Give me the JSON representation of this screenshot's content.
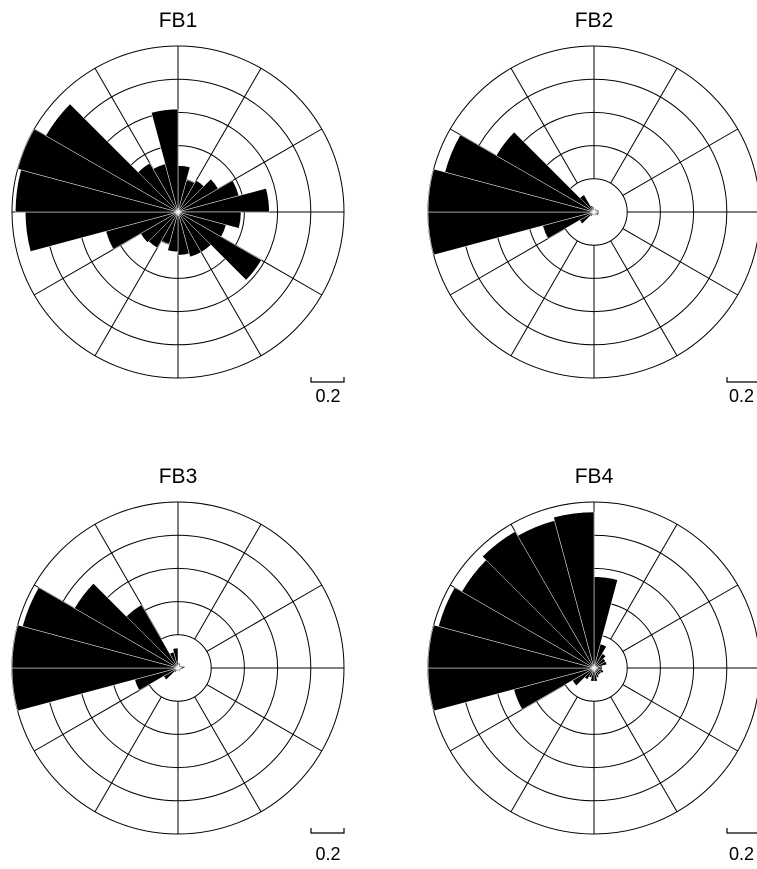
{
  "chart_data": [
    {
      "type": "rose",
      "title": "FB1",
      "rmax": 1.0,
      "ring_step": 0.2,
      "sector_width_deg": 15,
      "scale_label": "0.2",
      "sectors": [
        {
          "dir_deg": 7.5,
          "value": 0.28
        },
        {
          "dir_deg": 22.5,
          "value": 0.2
        },
        {
          "dir_deg": 37.5,
          "value": 0.22
        },
        {
          "dir_deg": 52.5,
          "value": 0.28
        },
        {
          "dir_deg": 67.5,
          "value": 0.38
        },
        {
          "dir_deg": 82.5,
          "value": 0.55
        },
        {
          "dir_deg": 97.5,
          "value": 0.38
        },
        {
          "dir_deg": 112.5,
          "value": 0.3
        },
        {
          "dir_deg": 127.5,
          "value": 0.58
        },
        {
          "dir_deg": 142.5,
          "value": 0.28
        },
        {
          "dir_deg": 157.5,
          "value": 0.28
        },
        {
          "dir_deg": 172.5,
          "value": 0.26
        },
        {
          "dir_deg": 187.5,
          "value": 0.24
        },
        {
          "dir_deg": 202.5,
          "value": 0.2
        },
        {
          "dir_deg": 217.5,
          "value": 0.25
        },
        {
          "dir_deg": 232.5,
          "value": 0.26
        },
        {
          "dir_deg": 247.5,
          "value": 0.45
        },
        {
          "dir_deg": 262.5,
          "value": 0.92
        },
        {
          "dir_deg": 277.5,
          "value": 0.98
        },
        {
          "dir_deg": 292.5,
          "value": 1.0
        },
        {
          "dir_deg": 307.5,
          "value": 0.92
        },
        {
          "dir_deg": 322.5,
          "value": 0.34
        },
        {
          "dir_deg": 337.5,
          "value": 0.3
        },
        {
          "dir_deg": 352.5,
          "value": 0.62
        }
      ]
    },
    {
      "type": "rose",
      "title": "FB2",
      "rmax": 1.0,
      "ring_step": 0.2,
      "sector_width_deg": 15,
      "scale_label": "0.2",
      "sectors": [
        {
          "dir_deg": 7.5,
          "value": 0.02
        },
        {
          "dir_deg": 22.5,
          "value": 0.02
        },
        {
          "dir_deg": 37.5,
          "value": 0.02
        },
        {
          "dir_deg": 52.5,
          "value": 0.02
        },
        {
          "dir_deg": 67.5,
          "value": 0.03
        },
        {
          "dir_deg": 82.5,
          "value": 0.03
        },
        {
          "dir_deg": 97.5,
          "value": 0.03
        },
        {
          "dir_deg": 112.5,
          "value": 0.03
        },
        {
          "dir_deg": 127.5,
          "value": 0.03
        },
        {
          "dir_deg": 142.5,
          "value": 0.02
        },
        {
          "dir_deg": 157.5,
          "value": 0.02
        },
        {
          "dir_deg": 172.5,
          "value": 0.02
        },
        {
          "dir_deg": 187.5,
          "value": 0.02
        },
        {
          "dir_deg": 202.5,
          "value": 0.02
        },
        {
          "dir_deg": 217.5,
          "value": 0.03
        },
        {
          "dir_deg": 232.5,
          "value": 0.1
        },
        {
          "dir_deg": 247.5,
          "value": 0.32
        },
        {
          "dir_deg": 262.5,
          "value": 1.0
        },
        {
          "dir_deg": 277.5,
          "value": 1.0
        },
        {
          "dir_deg": 292.5,
          "value": 0.93
        },
        {
          "dir_deg": 307.5,
          "value": 0.68
        },
        {
          "dir_deg": 322.5,
          "value": 0.12
        },
        {
          "dir_deg": 337.5,
          "value": 0.04
        },
        {
          "dir_deg": 352.5,
          "value": 0.03
        }
      ]
    },
    {
      "type": "rose",
      "title": "FB3",
      "rmax": 1.0,
      "ring_step": 0.2,
      "sector_width_deg": 15,
      "scale_label": "0.2",
      "sectors": [
        {
          "dir_deg": 7.5,
          "value": 0.03
        },
        {
          "dir_deg": 22.5,
          "value": 0.03
        },
        {
          "dir_deg": 37.5,
          "value": 0.02
        },
        {
          "dir_deg": 52.5,
          "value": 0.02
        },
        {
          "dir_deg": 67.5,
          "value": 0.03
        },
        {
          "dir_deg": 82.5,
          "value": 0.04
        },
        {
          "dir_deg": 97.5,
          "value": 0.03
        },
        {
          "dir_deg": 112.5,
          "value": 0.02
        },
        {
          "dir_deg": 127.5,
          "value": 0.02
        },
        {
          "dir_deg": 142.5,
          "value": 0.02
        },
        {
          "dir_deg": 157.5,
          "value": 0.02
        },
        {
          "dir_deg": 172.5,
          "value": 0.02
        },
        {
          "dir_deg": 187.5,
          "value": 0.02
        },
        {
          "dir_deg": 202.5,
          "value": 0.02
        },
        {
          "dir_deg": 217.5,
          "value": 0.03
        },
        {
          "dir_deg": 232.5,
          "value": 0.1
        },
        {
          "dir_deg": 247.5,
          "value": 0.27
        },
        {
          "dir_deg": 262.5,
          "value": 1.0
        },
        {
          "dir_deg": 277.5,
          "value": 1.0
        },
        {
          "dir_deg": 292.5,
          "value": 0.97
        },
        {
          "dir_deg": 307.5,
          "value": 0.72
        },
        {
          "dir_deg": 322.5,
          "value": 0.44
        },
        {
          "dir_deg": 337.5,
          "value": 0.1
        },
        {
          "dir_deg": 352.5,
          "value": 0.12
        }
      ]
    },
    {
      "type": "rose",
      "title": "FB4",
      "rmax": 1.0,
      "ring_step": 0.2,
      "sector_width_deg": 15,
      "scale_label": "0.2",
      "sectors": [
        {
          "dir_deg": 7.5,
          "value": 0.55
        },
        {
          "dir_deg": 22.5,
          "value": 0.15
        },
        {
          "dir_deg": 37.5,
          "value": 0.1
        },
        {
          "dir_deg": 52.5,
          "value": 0.08
        },
        {
          "dir_deg": 67.5,
          "value": 0.08
        },
        {
          "dir_deg": 82.5,
          "value": 0.05
        },
        {
          "dir_deg": 97.5,
          "value": 0.05
        },
        {
          "dir_deg": 112.5,
          "value": 0.06
        },
        {
          "dir_deg": 127.5,
          "value": 0.05
        },
        {
          "dir_deg": 142.5,
          "value": 0.05
        },
        {
          "dir_deg": 157.5,
          "value": 0.06
        },
        {
          "dir_deg": 172.5,
          "value": 0.08
        },
        {
          "dir_deg": 187.5,
          "value": 0.08
        },
        {
          "dir_deg": 202.5,
          "value": 0.06
        },
        {
          "dir_deg": 217.5,
          "value": 0.08
        },
        {
          "dir_deg": 232.5,
          "value": 0.15
        },
        {
          "dir_deg": 247.5,
          "value": 0.5
        },
        {
          "dir_deg": 262.5,
          "value": 1.0
        },
        {
          "dir_deg": 277.5,
          "value": 1.0
        },
        {
          "dir_deg": 292.5,
          "value": 0.97
        },
        {
          "dir_deg": 307.5,
          "value": 0.92
        },
        {
          "dir_deg": 322.5,
          "value": 0.95
        },
        {
          "dir_deg": 337.5,
          "value": 0.92
        },
        {
          "dir_deg": 352.5,
          "value": 0.94
        }
      ]
    }
  ]
}
